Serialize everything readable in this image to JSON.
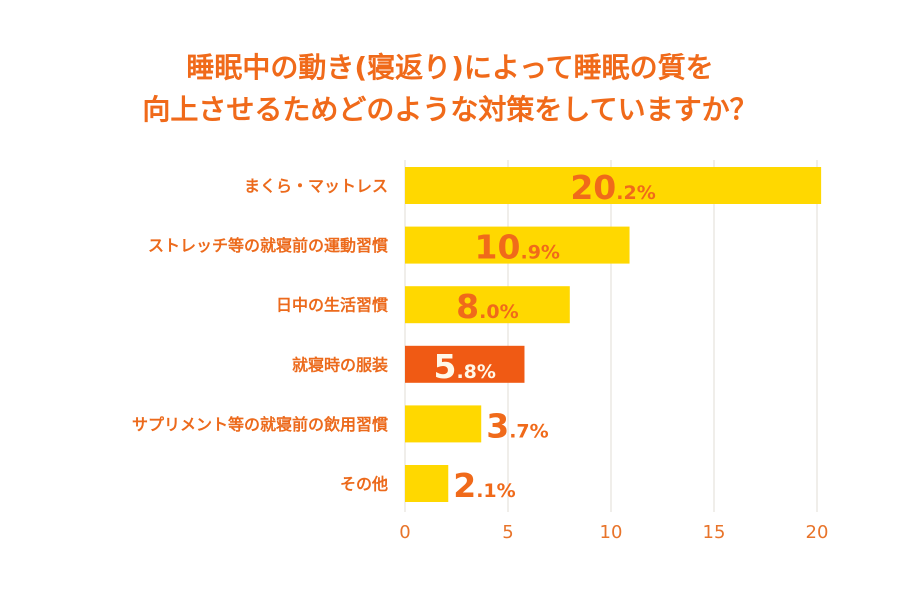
{
  "title": {
    "line1": "睡眠中の動き(寝返り)によって睡眠の質を",
    "line2": "向上させるためどのような対策をしていますか？"
  },
  "colors": {
    "bar": "#ffd800",
    "highlight_bar": "#f05a14",
    "text": "#f06a1a",
    "highlight_value_text": "#fff8e8",
    "grid": "#e2dcd6"
  },
  "chart_data": {
    "type": "bar",
    "orientation": "horizontal",
    "title": "睡眠中の動き(寝返り)によって睡眠の質を向上させるためどのような対策をしていますか？",
    "xlabel": "",
    "ylabel": "",
    "categories": [
      "まくら・マットレス",
      "ストレッチ等の就寝前の運動習慣",
      "日中の生活習慣",
      "就寝時の服装",
      "サプリメント等の就寝前の飲用習慣",
      "その他"
    ],
    "values": [
      20.2,
      10.9,
      8.0,
      5.8,
      3.7,
      2.1
    ],
    "value_labels": [
      {
        "int": "20",
        "dec": ".2%"
      },
      {
        "int": "10",
        "dec": ".9%"
      },
      {
        "int": "8",
        "dec": ".0%"
      },
      {
        "int": "5",
        "dec": ".8%"
      },
      {
        "int": "3",
        "dec": ".7%"
      },
      {
        "int": "2",
        "dec": ".1%"
      }
    ],
    "highlighted_index": 3,
    "xlim": [
      0,
      20
    ],
    "xticks": [
      0,
      5,
      10,
      15,
      20
    ],
    "xtick_labels": [
      "0",
      "5",
      "10",
      "15",
      "20"
    ],
    "grid": true,
    "legend": "none"
  }
}
